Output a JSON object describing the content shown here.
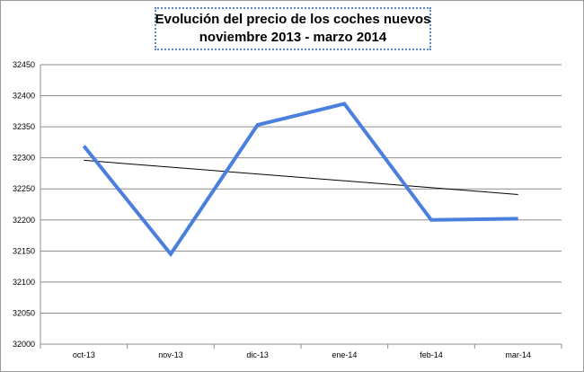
{
  "chart_data": {
    "type": "line",
    "title_lines": [
      "Evolución del precio de los coches nuevos",
      "noviembre 2013 - marzo 2014"
    ],
    "categories": [
      "oct-13",
      "nov-13",
      "dic-13",
      "ene-14",
      "feb-14",
      "mar-14"
    ],
    "series": [
      {
        "values": [
          32319,
          32145,
          32353,
          32387,
          32200,
          32202
        ],
        "color": "#4a7fdd"
      }
    ],
    "trendline": {
      "start": 32296,
      "end": 32241,
      "color": "#000000"
    },
    "ylim": [
      32000,
      32450
    ],
    "yticks": [
      32000,
      32050,
      32100,
      32150,
      32200,
      32250,
      32300,
      32350,
      32400,
      32450
    ],
    "xlabel": "",
    "ylabel": "",
    "grid": true,
    "legend": "none"
  }
}
